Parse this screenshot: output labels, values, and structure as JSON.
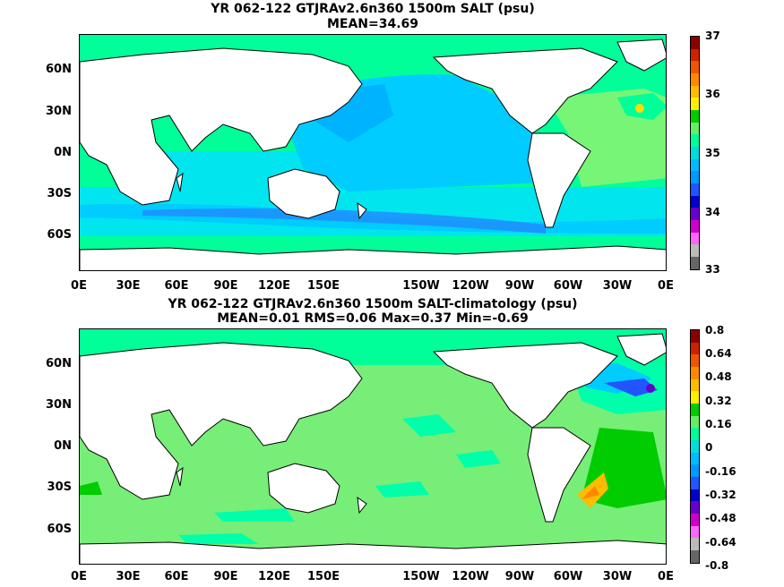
{
  "panel1": {
    "title": "YR 062-122 GTJRAv2.6n360 1500m SALT (psu)",
    "stats": "MEAN=34.69",
    "colorbar": {
      "labels": [
        "37",
        "36",
        "35",
        "34",
        "33"
      ],
      "colors": [
        "#8b0000",
        "#cc2200",
        "#ee5500",
        "#ff8800",
        "#ffbb00",
        "#ffee00",
        "#00cc00",
        "#66ee66",
        "#00ff99",
        "#00dddd",
        "#00bbff",
        "#0099ff",
        "#2255ff",
        "#0000cc",
        "#6600cc",
        "#cc00cc",
        "#ff66ff",
        "#bbbbbb",
        "#666666"
      ]
    }
  },
  "panel2": {
    "title": "YR 062-122 GTJRAv2.6n360 1500m SALT-climatology (psu)",
    "stats": "MEAN=0.01   RMS=0.06   Max=0.37   Min=-0.69",
    "colorbar": {
      "labels": [
        "0.8",
        "0.64",
        "0.48",
        "0.32",
        "0.16",
        "0",
        "-0.16",
        "-0.32",
        "-0.48",
        "-0.64",
        "-0.8"
      ],
      "colors": [
        "#8b0000",
        "#cc2200",
        "#ee5500",
        "#ff8800",
        "#ffbb00",
        "#ffee00",
        "#00cc00",
        "#66ee66",
        "#00ff99",
        "#00dddd",
        "#00bbff",
        "#0099ff",
        "#2255ff",
        "#0000cc",
        "#6600cc",
        "#cc00cc",
        "#ff66ff",
        "#bbbbbb",
        "#666666"
      ]
    }
  },
  "axes": {
    "lat_labels": [
      "60N",
      "30N",
      "0N",
      "30S",
      "60S"
    ],
    "lon_labels": [
      "0E",
      "30E",
      "60E",
      "90E",
      "120E",
      "150E",
      "150W",
      "120W",
      "90W",
      "60W",
      "30W",
      "0E"
    ]
  },
  "colors": {
    "land": "#ffffff",
    "coast": "#000000",
    "salt_35": "#00ff99",
    "salt_34_5": "#00ccff",
    "salt_34_7": "#00e5ee",
    "salt_35_2": "#77f577",
    "salt_34_2": "#2288ff",
    "anom_zero": "#77ee77",
    "anom_neg": "#00ffaa"
  }
}
